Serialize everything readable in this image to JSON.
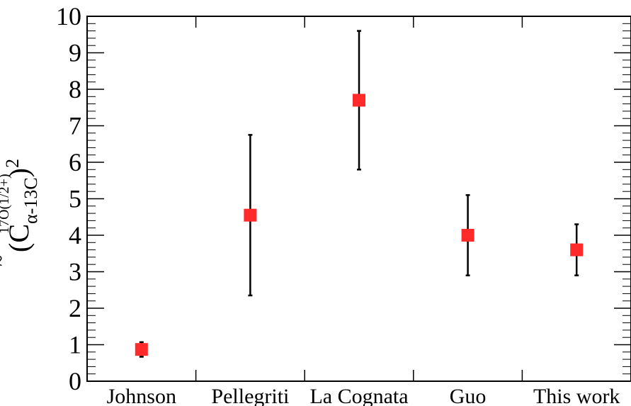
{
  "chart_data": {
    "type": "scatter",
    "title": "",
    "xlabel": "",
    "ylabel": {
      "open": "(",
      "main": "C",
      "accent": "~",
      "sup": "17O(1/2+)",
      "sub": "α-13C",
      "close": ")",
      "power": "2"
    },
    "categories": [
      "Johnson",
      "Pellegriti",
      "La Cognata",
      "Guo",
      "This work"
    ],
    "series": [
      {
        "values": [
          0.87,
          4.55,
          7.7,
          4.0,
          3.6
        ],
        "err_low": [
          0.67,
          2.35,
          5.8,
          2.9,
          2.9
        ],
        "err_high": [
          1.07,
          6.75,
          9.6,
          5.1,
          4.3
        ],
        "color": "#ff2a2a"
      }
    ],
    "ylim": [
      0,
      10
    ],
    "yticks": [
      "0",
      "1",
      "2",
      "3",
      "4",
      "5",
      "6",
      "7",
      "8",
      "9",
      "10"
    ],
    "grid": false,
    "legend": "none"
  }
}
